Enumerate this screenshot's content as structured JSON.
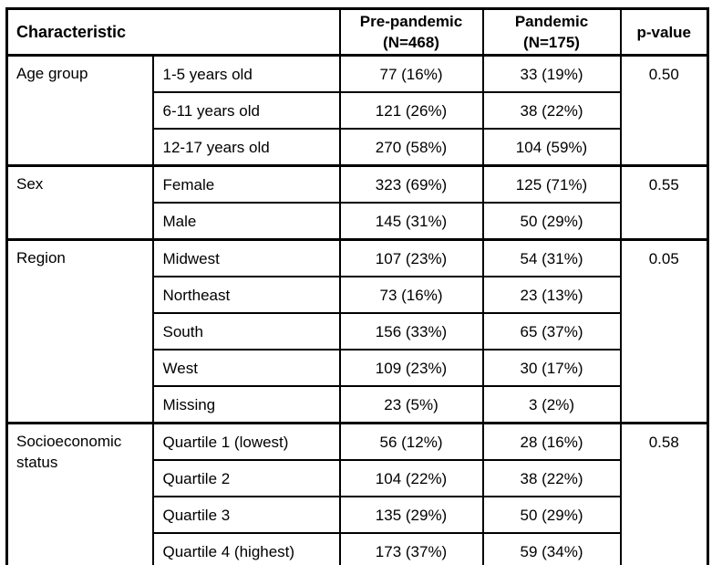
{
  "table": {
    "header": {
      "characteristic": "Characteristic",
      "col_pre": "Pre-pandemic",
      "col_pre_n": "(N=468)",
      "col_pan": "Pandemic",
      "col_pan_n": "(N=175)",
      "col_p": "p-value"
    },
    "groups": [
      {
        "label": "Age group",
        "p_value": "0.50",
        "rows": [
          {
            "label": "1-5 years old",
            "pre": "77 (16%)",
            "pan": "33 (19%)"
          },
          {
            "label": "6-11 years old",
            "pre": "121 (26%)",
            "pan": "38 (22%)"
          },
          {
            "label": "12-17 years old",
            "pre": "270 (58%)",
            "pan": "104 (59%)"
          }
        ]
      },
      {
        "label": "Sex",
        "p_value": "0.55",
        "rows": [
          {
            "label": "Female",
            "pre": "323 (69%)",
            "pan": "125 (71%)"
          },
          {
            "label": "Male",
            "pre": "145 (31%)",
            "pan": "50 (29%)"
          }
        ]
      },
      {
        "label": "Region",
        "p_value": "0.05",
        "rows": [
          {
            "label": "Midwest",
            "pre": "107 (23%)",
            "pan": "54 (31%)"
          },
          {
            "label": "Northeast",
            "pre": "73 (16%)",
            "pan": "23 (13%)"
          },
          {
            "label": "South",
            "pre": "156 (33%)",
            "pan": "65 (37%)"
          },
          {
            "label": "West",
            "pre": "109 (23%)",
            "pan": "30 (17%)"
          },
          {
            "label": "Missing",
            "pre": "23 (5%)",
            "pan": "3 (2%)"
          }
        ]
      },
      {
        "label": "Socioeconomic status",
        "p_value": "0.58",
        "rows": [
          {
            "label": "Quartile 1 (lowest)",
            "pre": "56 (12%)",
            "pan": "28 (16%)"
          },
          {
            "label": "Quartile 2",
            "pre": "104 (22%)",
            "pan": "38 (22%)"
          },
          {
            "label": "Quartile 3",
            "pre": "135 (29%)",
            "pan": "50 (29%)"
          },
          {
            "label": "Quartile 4 (highest)",
            "pre": "173 (37%)",
            "pan": "59 (34%)"
          }
        ]
      }
    ]
  }
}
